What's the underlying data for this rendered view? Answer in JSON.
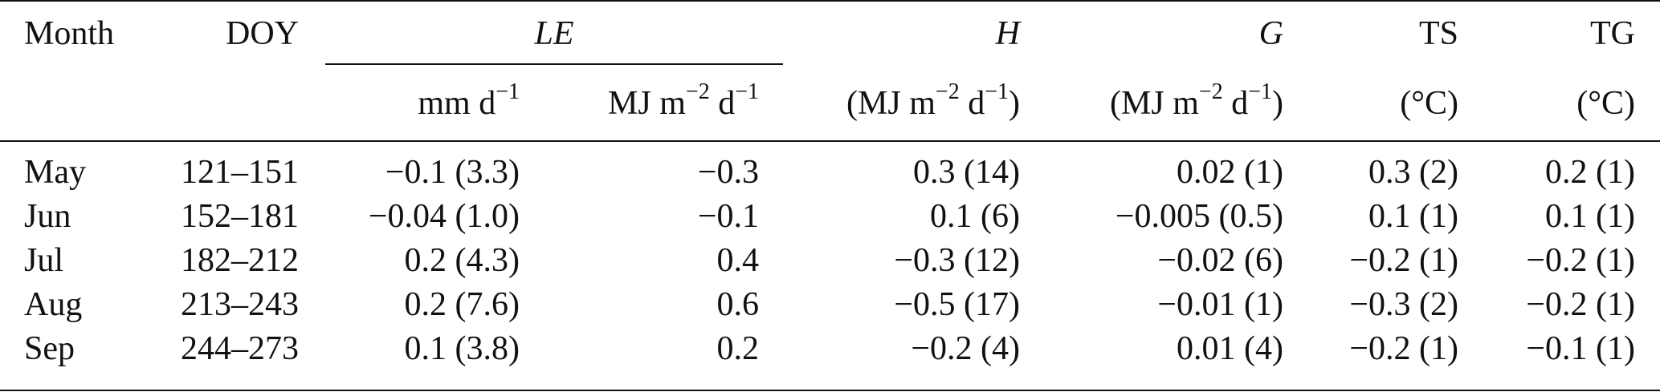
{
  "header": {
    "month": "Month",
    "doy": "DOY",
    "le": "LE",
    "h": "H",
    "g": "G",
    "ts": "TS",
    "tg": "TG"
  },
  "units": {
    "le_mm": "mm d",
    "le_mm_exp": "−1",
    "le_mj_base": "MJ m",
    "le_mj_exp1": "−2",
    "le_mj_mid": " d",
    "le_mj_exp2": "−1",
    "h_open": "(MJ m",
    "h_exp1": "−2",
    "h_mid": " d",
    "h_exp2": "−1",
    "h_close": ")",
    "g_open": "(MJ m",
    "g_exp1": "−2",
    "g_mid": " d",
    "g_exp2": "−1",
    "g_close": ")",
    "ts": "(°C)",
    "tg": "(°C)"
  },
  "rows": [
    {
      "month": "May",
      "doy": "121–151",
      "le_mm": "−0.1 (3.3)",
      "le_mj": "−0.3",
      "h": "0.3 (14)",
      "g": "0.02 (1)",
      "ts": "0.3 (2)",
      "tg": "0.2 (1)"
    },
    {
      "month": "Jun",
      "doy": "152–181",
      "le_mm": "−0.04 (1.0)",
      "le_mj": "−0.1",
      "h": "0.1 (6)",
      "g": "−0.005 (0.5)",
      "ts": "0.1 (1)",
      "tg": "0.1 (1)"
    },
    {
      "month": "Jul",
      "doy": "182–212",
      "le_mm": "0.2 (4.3)",
      "le_mj": "0.4",
      "h": "−0.3 (12)",
      "g": "−0.02 (6)",
      "ts": "−0.2 (1)",
      "tg": "−0.2 (1)"
    },
    {
      "month": "Aug",
      "doy": "213–243",
      "le_mm": "0.2 (7.6)",
      "le_mj": "0.6",
      "h": "−0.5 (17)",
      "g": "−0.01 (1)",
      "ts": "−0.3 (2)",
      "tg": "−0.2 (1)"
    },
    {
      "month": "Sep",
      "doy": "244–273",
      "le_mm": "0.1 (3.8)",
      "le_mj": "0.2",
      "h": "−0.2 (4)",
      "g": "0.01 (4)",
      "ts": "−0.2 (1)",
      "tg": "−0.1 (1)"
    }
  ]
}
